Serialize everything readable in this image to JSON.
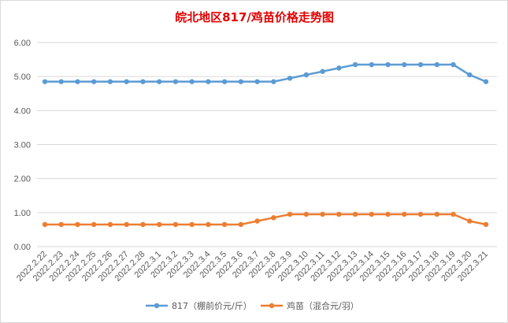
{
  "chart_data": {
    "type": "line",
    "title": "皖北地区817/鸡苗价格走势图",
    "xlabel": "",
    "ylabel": "",
    "ylim": [
      0,
      6
    ],
    "yticks": [
      "0.00",
      "1.00",
      "2.00",
      "3.00",
      "4.00",
      "5.00",
      "6.00"
    ],
    "grid": true,
    "legend_position": "bottom",
    "categories": [
      "2022.2.22",
      "2022.2.23",
      "2022.2.24",
      "2022.2.25",
      "2022.2.26",
      "2022.2.27",
      "2022.2.28",
      "2022.3.1",
      "2022.3.2",
      "2022.3.3",
      "2022.3.4",
      "2022.3.5",
      "2022.3.6",
      "2022.3.7",
      "2022.3.8",
      "2022.3.9",
      "2022.3.10",
      "2022.3.11",
      "2022.3.12",
      "2022.3.13",
      "2022.3.14",
      "2022.3.15",
      "2022.3.16",
      "2022.3.17",
      "2022.3.18",
      "2022.3.19",
      "2022.3.20",
      "2022.3.21"
    ],
    "series": [
      {
        "name": "817（棚前价元/斤）",
        "color": "#5b9bd5",
        "values": [
          4.85,
          4.85,
          4.85,
          4.85,
          4.85,
          4.85,
          4.85,
          4.85,
          4.85,
          4.85,
          4.85,
          4.85,
          4.85,
          4.85,
          4.85,
          4.95,
          5.05,
          5.15,
          5.25,
          5.35,
          5.35,
          5.35,
          5.35,
          5.35,
          5.35,
          5.35,
          5.05,
          4.85
        ]
      },
      {
        "name": "鸡苗（混合元/羽）",
        "color": "#ed7d31",
        "values": [
          0.65,
          0.65,
          0.65,
          0.65,
          0.65,
          0.65,
          0.65,
          0.65,
          0.65,
          0.65,
          0.65,
          0.65,
          0.65,
          0.75,
          0.85,
          0.95,
          0.95,
          0.95,
          0.95,
          0.95,
          0.95,
          0.95,
          0.95,
          0.95,
          0.95,
          0.95,
          0.75,
          0.65
        ]
      }
    ]
  }
}
